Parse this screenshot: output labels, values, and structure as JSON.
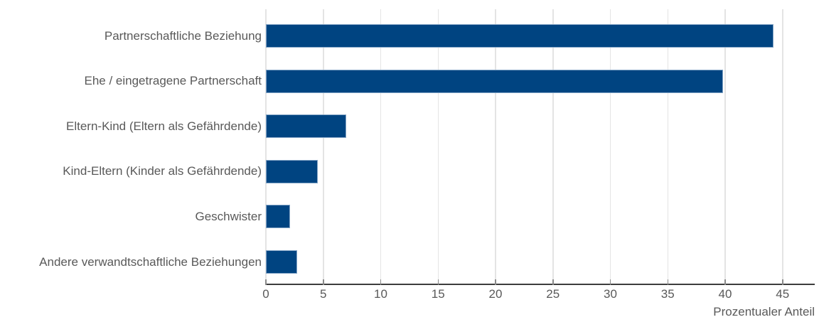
{
  "chart_data": {
    "type": "bar",
    "orientation": "horizontal",
    "title": "",
    "xlabel": "Prozentualer Anteil",
    "ylabel": "",
    "categories": [
      "Partnerschaftliche Beziehung",
      "Ehe / eingetragene Partnerschaft",
      "Eltern-Kind (Eltern als Gefährdende)",
      "Kind-Eltern (Kinder als Gefährdende)",
      "Geschwister",
      "Andere verwandtschaftliche Beziehungen"
    ],
    "values": [
      44.2,
      39.8,
      7.0,
      4.5,
      2.1,
      2.7
    ],
    "x_ticks": [
      0,
      5,
      10,
      15,
      20,
      25,
      30,
      35,
      40,
      45
    ],
    "xlim": [
      0,
      47.8
    ],
    "grid": true,
    "legend": false,
    "colors": {
      "bar_fill": "#004481",
      "bar_edge": "#84a5c6",
      "gridline": "#e4e4e4",
      "axis_line": "#3d3d3d",
      "tick_mark": "#8a8a8a",
      "text": "#595959",
      "background": "#ffffff"
    }
  }
}
